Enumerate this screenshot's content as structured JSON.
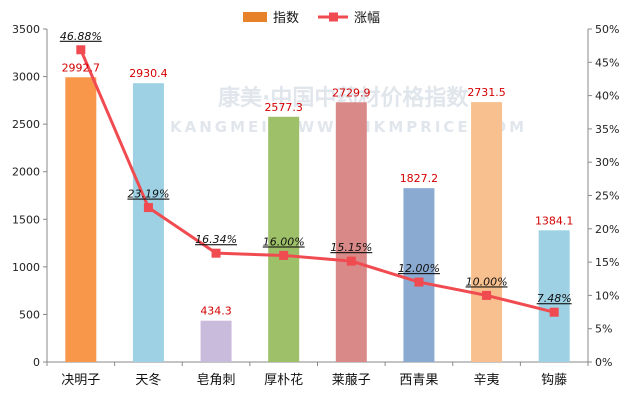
{
  "chart_data": {
    "type": "bar",
    "categories": [
      "决明子",
      "天冬",
      "皂角刺",
      "厚朴花",
      "莱菔子",
      "西青果",
      "辛夷",
      "钩藤"
    ],
    "series": [
      {
        "name": "指数",
        "type": "bar",
        "values": [
          2992.7,
          2930.4,
          434.3,
          2577.3,
          2729.9,
          1827.2,
          2731.5,
          1384.1
        ],
        "value_labels": [
          "2992.7",
          "2930.4",
          "434.3",
          "2577.3",
          "2729.9",
          "1827.2",
          "2731.5",
          "1384.1"
        ],
        "colors": [
          "#f8964a",
          "#9dd1e3",
          "#c9bbdc",
          "#9dc068",
          "#d98a88",
          "#8aaad2",
          "#f8c08e",
          "#9dd1e3"
        ]
      },
      {
        "name": "涨幅",
        "type": "line",
        "axis": "right",
        "values": [
          46.88,
          23.19,
          16.34,
          16.0,
          15.15,
          12.0,
          10.0,
          7.48
        ],
        "value_labels": [
          "46.88%",
          "23.19%",
          "16.34%",
          "16.00%",
          "15.15%",
          "12.00%",
          "10.00%",
          "7.48%"
        ],
        "color": "#f04b50"
      }
    ],
    "y_left": {
      "min": 0,
      "max": 3500,
      "step": 500,
      "ticks": [
        "0",
        "500",
        "1000",
        "1500",
        "2000",
        "2500",
        "3000",
        "3500"
      ]
    },
    "y_right": {
      "min": 0,
      "max": 50,
      "step": 5,
      "ticks": [
        "0%",
        "5%",
        "10%",
        "15%",
        "20%",
        "25%",
        "30%",
        "35%",
        "40%",
        "45%",
        "50%"
      ]
    },
    "legend": {
      "position": "top",
      "items": [
        {
          "label": "指数",
          "color": "#e8822a",
          "kind": "bar"
        },
        {
          "label": "涨幅",
          "color": "#f04b50",
          "kind": "line"
        }
      ]
    },
    "grid": false,
    "title": "",
    "xlabel": "",
    "ylabel": ""
  },
  "watermark": {
    "text": "康美·中国中药材价格指数",
    "subtext": "KANGMEI WWW.CNKMPRICE.COM"
  }
}
